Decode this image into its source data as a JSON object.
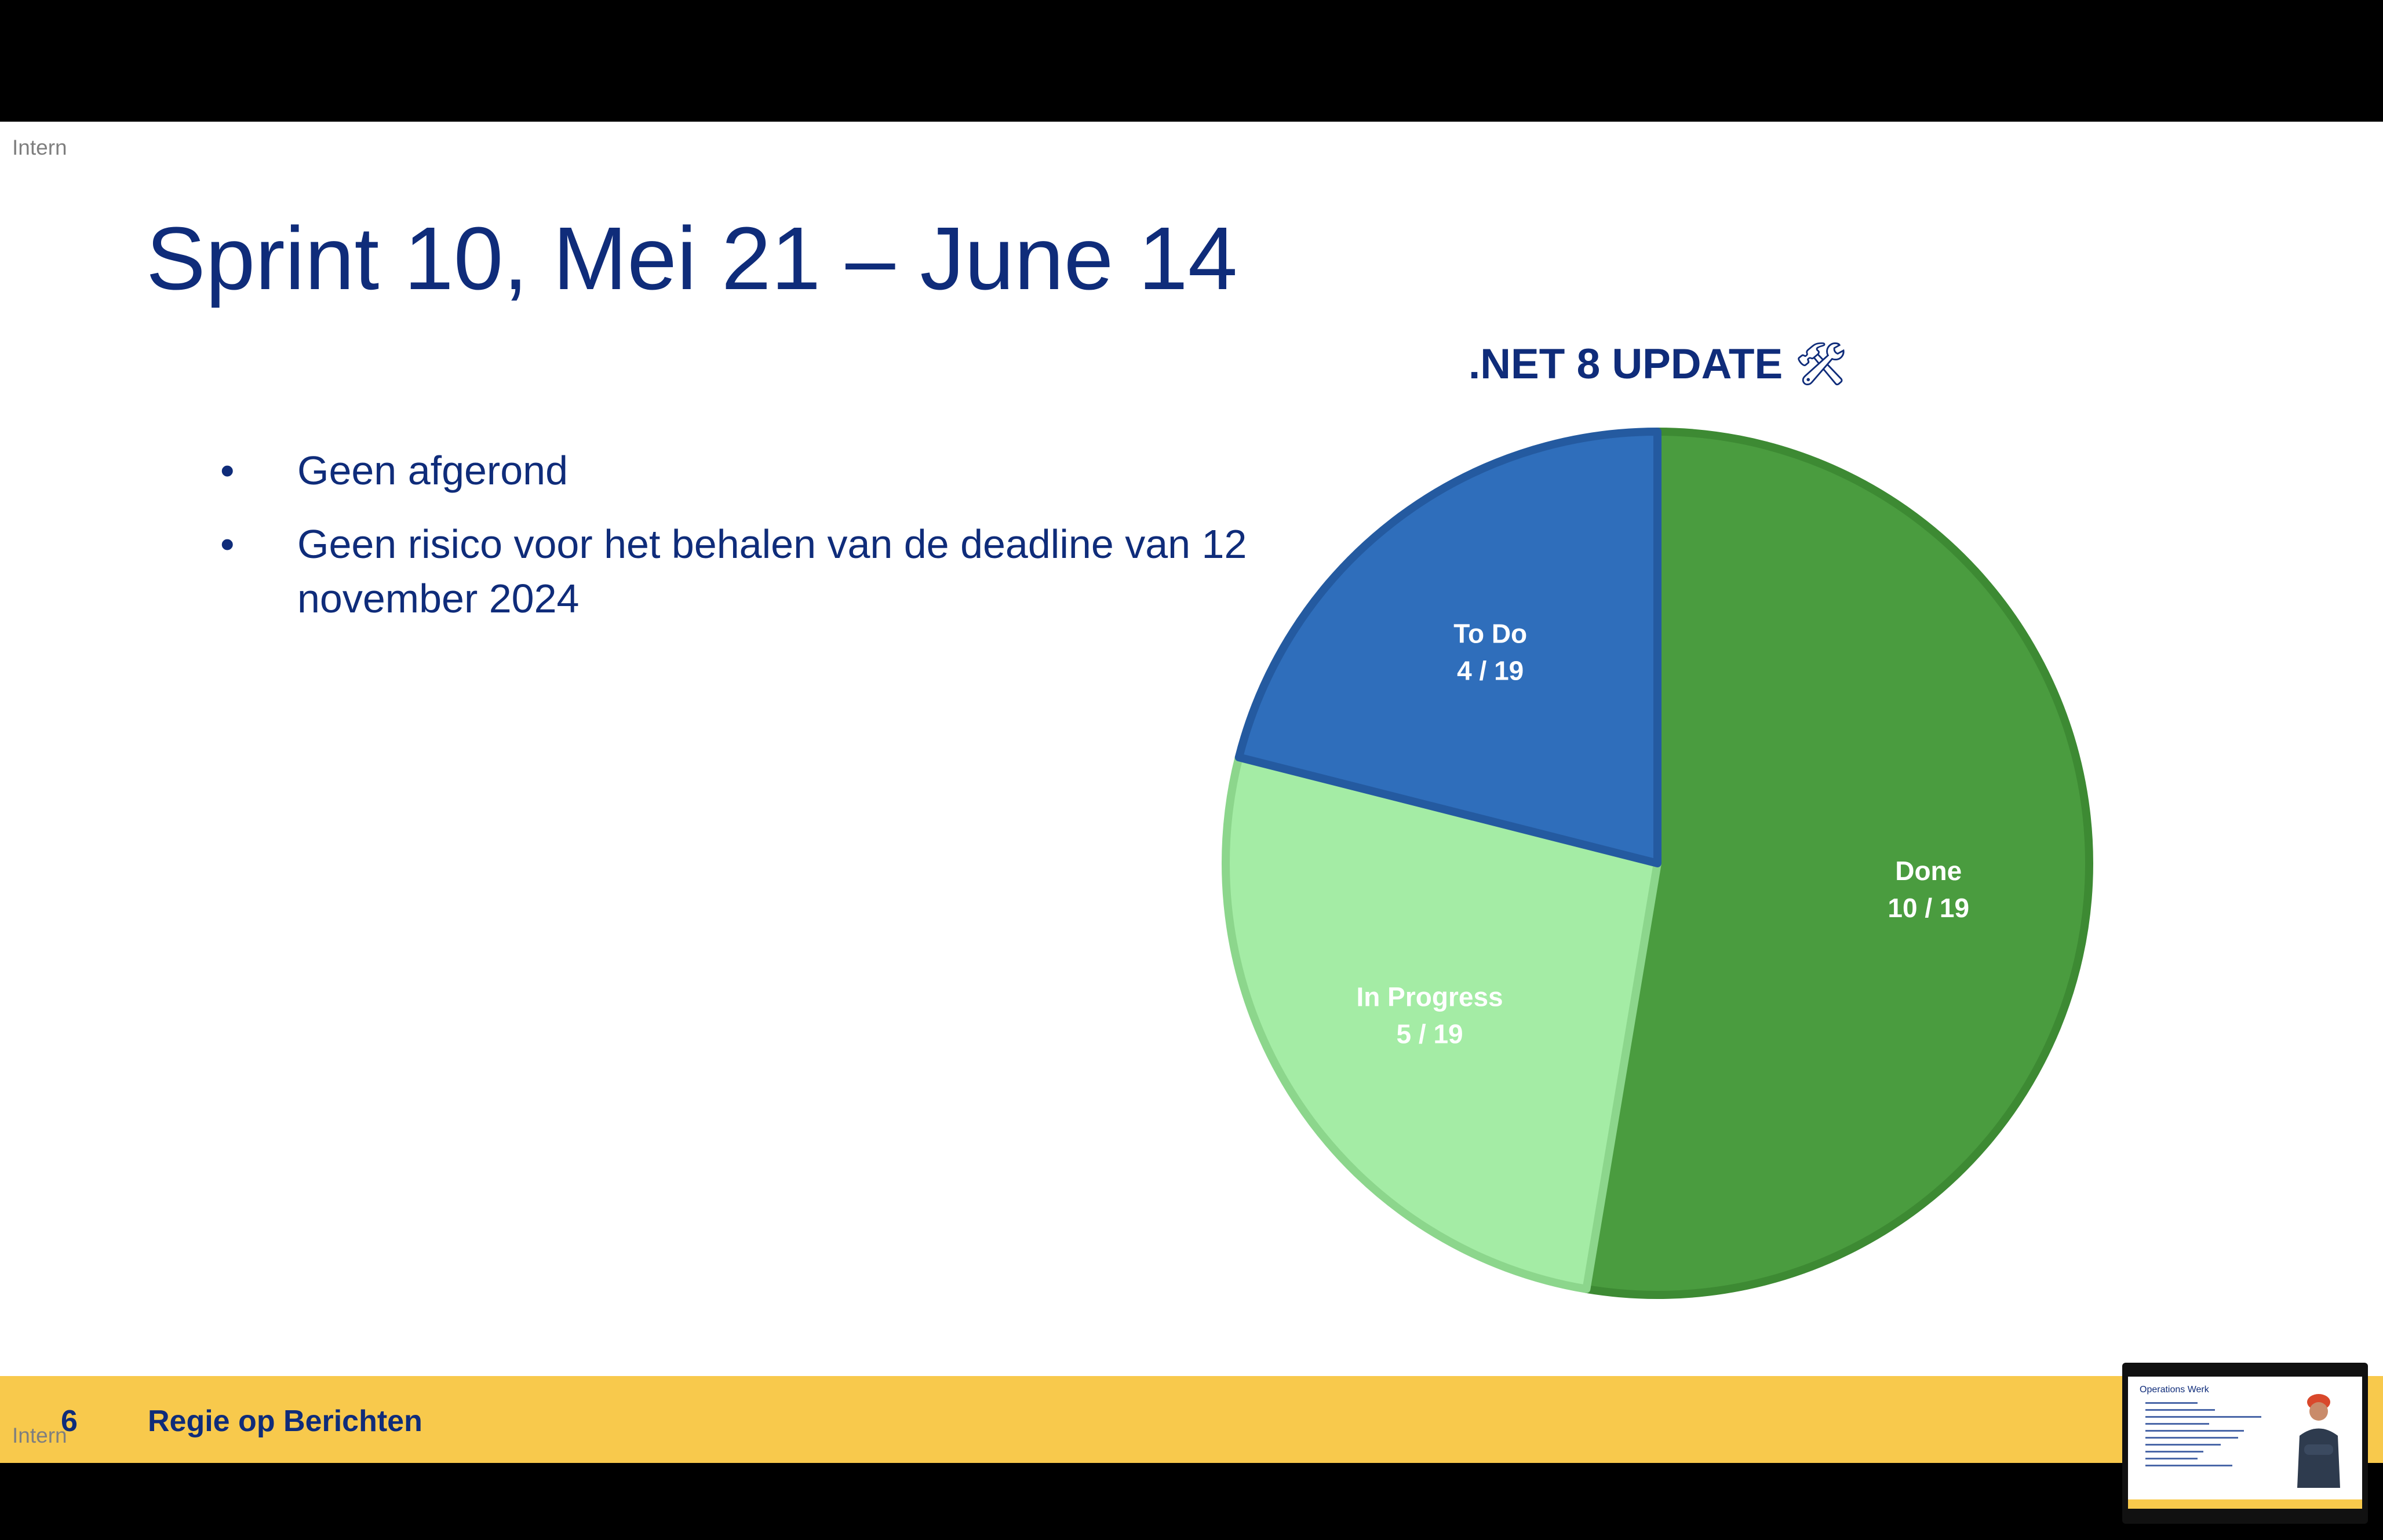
{
  "slide": {
    "label": "Intern",
    "title": "Sprint 10, Mei 21 – June 14",
    "bullets": [
      "Geen afgerond",
      "Geen risico voor het behalen van de deadline van 12 november 2024"
    ],
    "bullet_symbol": "•"
  },
  "chart_data": {
    "type": "pie",
    "title": ".NET 8 UPDATE",
    "title_icon": "🛠",
    "total": 19,
    "slices": [
      {
        "name": "Done",
        "value": 10,
        "label": "10 / 19",
        "color": "#4a9c3f",
        "stroke": "#3d8a33"
      },
      {
        "name": "In Progress",
        "value": 5,
        "label": "5 / 19",
        "color": "#a4ecа5",
        "stroke": "#8cd68c"
      },
      {
        "name": "To Do",
        "value": 4,
        "label": "4 / 19",
        "color": "#2f6ebb",
        "stroke": "#245aa0"
      }
    ]
  },
  "footer": {
    "page_number": "6",
    "name": "Regie op Berichten",
    "label": "Intern"
  },
  "thumbnail": {
    "title": "Operations Werk"
  },
  "colors": {
    "brand_blue": "#0f2c7a",
    "footer_yellow": "#f8c94c"
  }
}
